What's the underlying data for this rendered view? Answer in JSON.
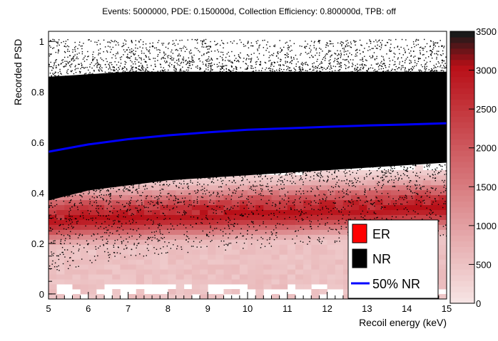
{
  "chart_data": {
    "type": "heatmap",
    "title": "Events: 5000000, PDE: 0.150000d, Collection Efficiency: 0.800000d, TPB: off",
    "xlabel": "Recoil energy (keV)",
    "ylabel": "Recorded PSD",
    "xlim": [
      5,
      15
    ],
    "ylim": [
      -0.02,
      1.04
    ],
    "x_ticks": [
      "5",
      "6",
      "7",
      "8",
      "9",
      "10",
      "11",
      "12",
      "13",
      "14",
      "15"
    ],
    "y_ticks": [
      "0",
      "0.2",
      "0.4",
      "0.6",
      "0.8",
      "1"
    ],
    "colorbar": {
      "range": [
        0,
        3500
      ],
      "ticks": [
        "0",
        "500",
        "1000",
        "1500",
        "2000",
        "2500",
        "3000",
        "3500"
      ],
      "low_color": "#f6e3e3",
      "high_color": "#b80f17",
      "top_color": "#1a1a1a"
    },
    "legend": {
      "position": "bottom-right",
      "entries": [
        {
          "label": "ER",
          "color": "#ff0000",
          "kind": "box"
        },
        {
          "label": "NR",
          "color": "#000000",
          "kind": "box"
        },
        {
          "label": "50% NR",
          "color": "#0000ff",
          "kind": "line"
        }
      ]
    },
    "series": [
      {
        "name": "ER",
        "kind": "density",
        "color": "#c8141c",
        "center_psd": [
          0.3,
          0.31,
          0.31,
          0.32,
          0.32,
          0.33,
          0.33,
          0.34,
          0.34,
          0.35,
          0.35
        ]
      },
      {
        "name": "NR",
        "kind": "density",
        "color": "#000000",
        "upper_edge": [
          0.9,
          0.91,
          0.92,
          0.92,
          0.92,
          0.92,
          0.92,
          0.92,
          0.92,
          0.92,
          0.92
        ],
        "lower_edge": [
          0.33,
          0.37,
          0.39,
          0.41,
          0.42,
          0.43,
          0.44,
          0.45,
          0.46,
          0.47,
          0.48
        ]
      },
      {
        "name": "50% NR",
        "kind": "line",
        "color": "#0000ff",
        "x": [
          5,
          6,
          7,
          8,
          9,
          10,
          11,
          12,
          13,
          14,
          15
        ],
        "y": [
          0.563,
          0.592,
          0.613,
          0.628,
          0.64,
          0.65,
          0.656,
          0.662,
          0.667,
          0.671,
          0.676
        ]
      }
    ],
    "grid": false
  }
}
